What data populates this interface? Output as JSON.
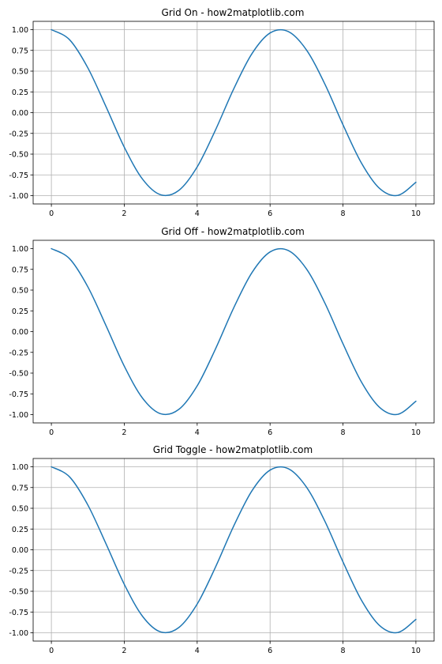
{
  "chart_data": [
    {
      "type": "line",
      "title": "Grid On - how2matplotlib.com",
      "grid": true,
      "xlim": [
        -0.5,
        10.5
      ],
      "ylim": [
        -1.1,
        1.1
      ],
      "xticks": [
        0,
        2,
        4,
        6,
        8,
        10
      ],
      "xtick_labels": [
        "0",
        "2",
        "4",
        "6",
        "8",
        "10"
      ],
      "yticks": [
        1.0,
        0.75,
        0.5,
        0.25,
        0.0,
        -0.25,
        -0.5,
        -0.75,
        -1.0
      ],
      "ytick_labels": [
        "1.00",
        "0.75",
        "0.50",
        "0.25",
        "0.00",
        "-0.25",
        "-0.50",
        "-0.75",
        "-1.00"
      ],
      "series": [
        {
          "color": "#1f77b4",
          "x": [
            0,
            0.5,
            1,
            1.5,
            2,
            2.5,
            3,
            3.5,
            4,
            4.5,
            5,
            5.5,
            6,
            6.5,
            7,
            7.5,
            8,
            8.5,
            9,
            9.5,
            10
          ],
          "y": [
            1.0,
            0.878,
            0.54,
            0.071,
            -0.416,
            -0.801,
            -0.99,
            -0.936,
            -0.654,
            -0.211,
            0.284,
            0.709,
            0.96,
            0.977,
            0.754,
            0.347,
            -0.146,
            -0.602,
            -0.911,
            -0.997,
            -0.839
          ]
        }
      ]
    },
    {
      "type": "line",
      "title": "Grid Off - how2matplotlib.com",
      "grid": false,
      "xlim": [
        -0.5,
        10.5
      ],
      "ylim": [
        -1.1,
        1.1
      ],
      "xticks": [
        0,
        2,
        4,
        6,
        8,
        10
      ],
      "xtick_labels": [
        "0",
        "2",
        "4",
        "6",
        "8",
        "10"
      ],
      "yticks": [
        1.0,
        0.75,
        0.5,
        0.25,
        0.0,
        -0.25,
        -0.5,
        -0.75,
        -1.0
      ],
      "ytick_labels": [
        "1.00",
        "0.75",
        "0.50",
        "0.25",
        "0.00",
        "-0.25",
        "-0.50",
        "-0.75",
        "-1.00"
      ],
      "series": [
        {
          "color": "#1f77b4",
          "x": [
            0,
            0.5,
            1,
            1.5,
            2,
            2.5,
            3,
            3.5,
            4,
            4.5,
            5,
            5.5,
            6,
            6.5,
            7,
            7.5,
            8,
            8.5,
            9,
            9.5,
            10
          ],
          "y": [
            1.0,
            0.878,
            0.54,
            0.071,
            -0.416,
            -0.801,
            -0.99,
            -0.936,
            -0.654,
            -0.211,
            0.284,
            0.709,
            0.96,
            0.977,
            0.754,
            0.347,
            -0.146,
            -0.602,
            -0.911,
            -0.997,
            -0.839
          ]
        }
      ]
    },
    {
      "type": "line",
      "title": "Grid Toggle - how2matplotlib.com",
      "grid": true,
      "xlim": [
        -0.5,
        10.5
      ],
      "ylim": [
        -1.1,
        1.1
      ],
      "xticks": [
        0,
        2,
        4,
        6,
        8,
        10
      ],
      "xtick_labels": [
        "0",
        "2",
        "4",
        "6",
        "8",
        "10"
      ],
      "yticks": [
        1.0,
        0.75,
        0.5,
        0.25,
        0.0,
        -0.25,
        -0.5,
        -0.75,
        -1.0
      ],
      "ytick_labels": [
        "1.00",
        "0.75",
        "0.50",
        "0.25",
        "0.00",
        "-0.25",
        "-0.50",
        "-0.75",
        "-1.00"
      ],
      "series": [
        {
          "color": "#1f77b4",
          "x": [
            0,
            0.5,
            1,
            1.5,
            2,
            2.5,
            3,
            3.5,
            4,
            4.5,
            5,
            5.5,
            6,
            6.5,
            7,
            7.5,
            8,
            8.5,
            9,
            9.5,
            10
          ],
          "y": [
            1.0,
            0.878,
            0.54,
            0.071,
            -0.416,
            -0.801,
            -0.99,
            -0.936,
            -0.654,
            -0.211,
            0.284,
            0.709,
            0.96,
            0.977,
            0.754,
            0.347,
            -0.146,
            -0.602,
            -0.911,
            -0.997,
            -0.839
          ]
        }
      ]
    }
  ]
}
